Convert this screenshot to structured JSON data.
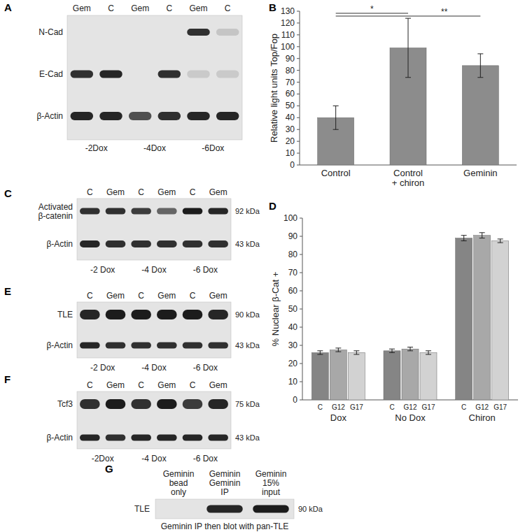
{
  "panel_labels": [
    "A",
    "B",
    "C",
    "D",
    "E",
    "F",
    "G"
  ],
  "chart_data": [
    {
      "type": "bar",
      "categories": [
        "Control",
        "Control\n+ chiron",
        "Geminin"
      ],
      "values": [
        40,
        99,
        84
      ],
      "errors": [
        10,
        25,
        10
      ],
      "color": "#8c8c8c",
      "y_label": "Relative light units Top/Fop",
      "ylim": [
        0,
        130
      ],
      "yticks": [
        0,
        10,
        20,
        30,
        40,
        50,
        60,
        70,
        80,
        90,
        100,
        110,
        120,
        130
      ],
      "annotations": [
        {
          "text": "*",
          "from": 0,
          "to": 1
        },
        {
          "text": "**",
          "from": 0,
          "to": 2
        }
      ]
    },
    {
      "type": "bar",
      "categories": [
        "Dox",
        "No Dox",
        "Chiron"
      ],
      "series": [
        {
          "name": "C",
          "color": "#858585",
          "values": [
            26,
            27,
            89
          ],
          "errors": [
            1,
            1,
            1.5
          ]
        },
        {
          "name": "G12",
          "color": "#a8a8a8",
          "values": [
            27.5,
            28,
            90.5
          ],
          "errors": [
            1,
            1,
            1.5
          ]
        },
        {
          "name": "G17",
          "color": "#d2d2d2",
          "values": [
            26,
            26,
            87.5
          ],
          "errors": [
            1,
            1,
            1
          ]
        }
      ],
      "y_label": "% Nuclear β-Cat +",
      "ylim": [
        0,
        100
      ],
      "yticks": [
        0,
        10,
        20,
        30,
        40,
        50,
        60,
        70,
        80,
        90,
        100
      ]
    }
  ],
  "blots": [
    {
      "lanes": [
        "Gem",
        "C",
        "Gem",
        "C",
        "Gem",
        "C"
      ],
      "rows": [
        {
          "label": "N-Cad"
        },
        {
          "label": "E-Cad"
        },
        {
          "label": "β-Actin"
        }
      ],
      "conditions": [
        "-2Dox",
        "-4Dox",
        "-6Dox"
      ]
    },
    {
      "lanes": [
        "C",
        "Gem",
        "C",
        "Gem",
        "C",
        "Gem"
      ],
      "rows": [
        {
          "label": "Activated\nβ-catenin",
          "size": "92 kDa"
        },
        {
          "label": "β-Actin",
          "size": "43 kDa"
        }
      ],
      "conditions": [
        "-2 Dox",
        "-4 Dox",
        "-6 Dox"
      ]
    },
    {
      "lanes": [
        "C",
        "Gem",
        "C",
        "Gem",
        "C",
        "Gem"
      ],
      "rows": [
        {
          "label": "TLE",
          "size": "90 kDa"
        },
        {
          "label": "β-Actin",
          "size": "43 kDa"
        }
      ],
      "conditions": [
        "-2 Dox",
        "-4 Dox",
        "-6 Dox"
      ]
    },
    {
      "lanes": [
        "C",
        "Gem",
        "C",
        "Gem",
        "C",
        "Gem"
      ],
      "rows": [
        {
          "label": "Tcf3",
          "size": "75 kDa"
        },
        {
          "label": "β-Actin",
          "size": "43 kDa"
        }
      ],
      "conditions": [
        "-2Dox",
        "-4 Dox",
        "-6 Dox"
      ]
    },
    {
      "lanes": [
        "Geminin\nbead\nonly",
        "Geminin\nGeminin\nIP",
        "Geminin\n15%\ninput"
      ],
      "rows": [
        {
          "label": "TLE",
          "size": "90 kDa"
        }
      ],
      "caption": "Geminin IP then blot with pan-TLE"
    }
  ]
}
